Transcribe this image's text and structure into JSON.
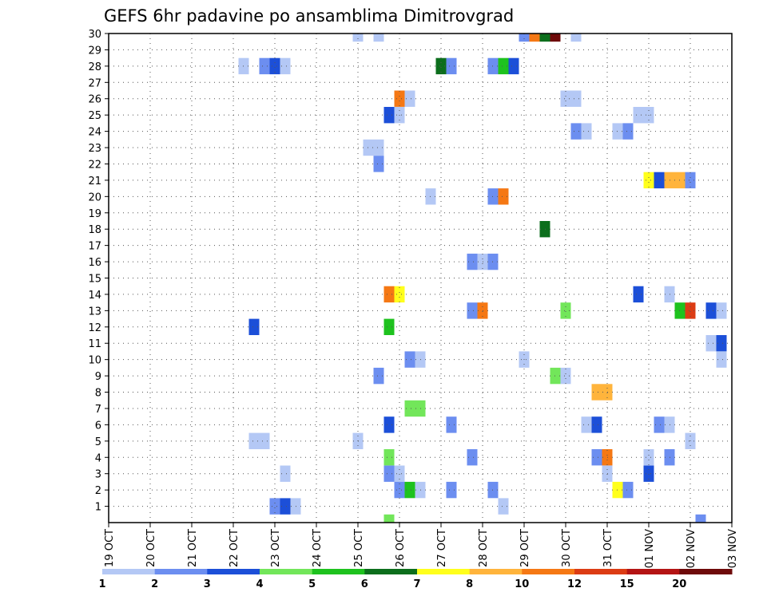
{
  "chart_data": {
    "type": "heatmap",
    "title": "GEFS 6hr padavine po ansamblima Dimitrovgrad",
    "xlabel": "",
    "ylabel": "",
    "x_ticks": [
      "19 OCT",
      "20 OCT",
      "21 OCT",
      "22 OCT",
      "23 OCT",
      "24 OCT",
      "25 OCT",
      "26 OCT",
      "27 OCT",
      "28 OCT",
      "29 OCT",
      "30 OCT",
      "31 OCT",
      "01 NOV",
      "02 NOV",
      "03 NOV"
    ],
    "y_ticks": [
      "1",
      "2",
      "3",
      "4",
      "5",
      "6",
      "7",
      "8",
      "9",
      "10",
      "11",
      "12",
      "13",
      "14",
      "15",
      "16",
      "17",
      "18",
      "19",
      "20",
      "21",
      "22",
      "23",
      "24",
      "25",
      "26",
      "27",
      "28",
      "29",
      "30"
    ],
    "x_range_days": [
      0,
      15
    ],
    "y_range": [
      0,
      30
    ],
    "time_step_hours": 6,
    "grid": true,
    "colorbar": {
      "labels": [
        "1",
        "2",
        "3",
        "4",
        "5",
        "6",
        "7",
        "8",
        "10",
        "12",
        "15",
        "20"
      ],
      "colors": [
        "#b4c8f5",
        "#6c8ef0",
        "#1c4fd8",
        "#72e65a",
        "#1ec21e",
        "#0c6e1c",
        "#ffff1c",
        "#ffb43c",
        "#f57814",
        "#dc3c14",
        "#b41414",
        "#6e0a0a"
      ]
    },
    "cells": [
      {
        "member": 30,
        "day": 25.0,
        "value": 1.5
      },
      {
        "member": 30,
        "day": 25.5,
        "value": 1.5
      },
      {
        "member": 30,
        "day": 29.0,
        "value": 2.5
      },
      {
        "member": 30,
        "day": 29.25,
        "value": 11
      },
      {
        "member": 30,
        "day": 29.5,
        "value": 6.5
      },
      {
        "member": 30,
        "day": 29.75,
        "value": 25
      },
      {
        "member": 30,
        "day": 30.25,
        "value": 1.5
      },
      {
        "member": 28,
        "day": 22.25,
        "value": 1.5
      },
      {
        "member": 28,
        "day": 22.75,
        "value": 2.5
      },
      {
        "member": 28,
        "day": 23.0,
        "value": 3.5
      },
      {
        "member": 28,
        "day": 23.25,
        "value": 1.5
      },
      {
        "member": 28,
        "day": 27.0,
        "value": 6.5
      },
      {
        "member": 28,
        "day": 27.25,
        "value": 2.5
      },
      {
        "member": 28,
        "day": 28.25,
        "value": 2.5
      },
      {
        "member": 28,
        "day": 28.5,
        "value": 5.5
      },
      {
        "member": 28,
        "day": 28.75,
        "value": 3.5
      },
      {
        "member": 26,
        "day": 26.0,
        "value": 11
      },
      {
        "member": 26,
        "day": 26.25,
        "value": 1.5
      },
      {
        "member": 26,
        "day": 30.0,
        "value": 1.5
      },
      {
        "member": 26,
        "day": 30.25,
        "value": 1.5
      },
      {
        "member": 25,
        "day": 25.75,
        "value": 3.5
      },
      {
        "member": 25,
        "day": 26.0,
        "value": 1.5
      },
      {
        "member": 25,
        "day": 31.75,
        "value": 1.5
      },
      {
        "member": 25,
        "day": 32.0,
        "value": 1.5
      },
      {
        "member": 24,
        "day": 30.25,
        "value": 2.5
      },
      {
        "member": 24,
        "day": 30.5,
        "value": 1.5
      },
      {
        "member": 24,
        "day": 31.25,
        "value": 1.5
      },
      {
        "member": 24,
        "day": 31.5,
        "value": 2.5
      },
      {
        "member": 23,
        "day": 25.25,
        "value": 1.5
      },
      {
        "member": 23,
        "day": 25.5,
        "value": 1.5
      },
      {
        "member": 22,
        "day": 25.5,
        "value": 2.5
      },
      {
        "member": 21,
        "day": 32.0,
        "value": 7.5
      },
      {
        "member": 21,
        "day": 32.25,
        "value": 3.5
      },
      {
        "member": 21,
        "day": 32.5,
        "value": 9
      },
      {
        "member": 21,
        "day": 32.75,
        "value": 9
      },
      {
        "member": 21,
        "day": 33.0,
        "value": 2.5
      },
      {
        "member": 20,
        "day": 26.75,
        "value": 1.5
      },
      {
        "member": 20,
        "day": 28.25,
        "value": 2.5
      },
      {
        "member": 20,
        "day": 28.5,
        "value": 11
      },
      {
        "member": 18,
        "day": 29.5,
        "value": 6.5
      },
      {
        "member": 16,
        "day": 27.75,
        "value": 2.5
      },
      {
        "member": 16,
        "day": 28.0,
        "value": 1.5
      },
      {
        "member": 16,
        "day": 28.25,
        "value": 2.5
      },
      {
        "member": 14,
        "day": 25.75,
        "value": 11
      },
      {
        "member": 14,
        "day": 26.0,
        "value": 7.5
      },
      {
        "member": 14,
        "day": 31.75,
        "value": 3.5
      },
      {
        "member": 14,
        "day": 32.5,
        "value": 1.5
      },
      {
        "member": 13,
        "day": 27.75,
        "value": 2.5
      },
      {
        "member": 13,
        "day": 28.0,
        "value": 11
      },
      {
        "member": 13,
        "day": 30.0,
        "value": 4.5
      },
      {
        "member": 13,
        "day": 32.75,
        "value": 5.5
      },
      {
        "member": 13,
        "day": 33.0,
        "value": 13
      },
      {
        "member": 13,
        "day": 33.5,
        "value": 3.5
      },
      {
        "member": 13,
        "day": 33.75,
        "value": 1.5
      },
      {
        "member": 12,
        "day": 22.5,
        "value": 3.5
      },
      {
        "member": 12,
        "day": 25.75,
        "value": 5.5
      },
      {
        "member": 11,
        "day": 33.5,
        "value": 1.5
      },
      {
        "member": 11,
        "day": 33.75,
        "value": 3.5
      },
      {
        "member": 10,
        "day": 26.25,
        "value": 2.5
      },
      {
        "member": 10,
        "day": 26.5,
        "value": 1.5
      },
      {
        "member": 10,
        "day": 29.0,
        "value": 1.5
      },
      {
        "member": 10,
        "day": 33.75,
        "value": 1.5
      },
      {
        "member": 9,
        "day": 25.5,
        "value": 2.5
      },
      {
        "member": 9,
        "day": 29.75,
        "value": 4.5
      },
      {
        "member": 9,
        "day": 30.0,
        "value": 1.5
      },
      {
        "member": 8,
        "day": 30.75,
        "value": 9
      },
      {
        "member": 8,
        "day": 31.0,
        "value": 9
      },
      {
        "member": 7,
        "day": 26.25,
        "value": 4.5
      },
      {
        "member": 7,
        "day": 26.5,
        "value": 4.5
      },
      {
        "member": 6,
        "day": 25.75,
        "value": 3.5
      },
      {
        "member": 6,
        "day": 27.25,
        "value": 2.5
      },
      {
        "member": 6,
        "day": 30.5,
        "value": 1.5
      },
      {
        "member": 6,
        "day": 30.75,
        "value": 3.5
      },
      {
        "member": 6,
        "day": 32.25,
        "value": 2.5
      },
      {
        "member": 6,
        "day": 32.5,
        "value": 1.5
      },
      {
        "member": 5,
        "day": 22.5,
        "value": 1.5
      },
      {
        "member": 5,
        "day": 22.75,
        "value": 1.5
      },
      {
        "member": 5,
        "day": 25.0,
        "value": 1.5
      },
      {
        "member": 5,
        "day": 33.0,
        "value": 1.5
      },
      {
        "member": 4,
        "day": 25.75,
        "value": 4.5
      },
      {
        "member": 4,
        "day": 27.75,
        "value": 2.5
      },
      {
        "member": 4,
        "day": 30.75,
        "value": 2.5
      },
      {
        "member": 4,
        "day": 31.0,
        "value": 11
      },
      {
        "member": 4,
        "day": 32.0,
        "value": 1.5
      },
      {
        "member": 4,
        "day": 32.5,
        "value": 2.5
      },
      {
        "member": 3,
        "day": 23.25,
        "value": 1.5
      },
      {
        "member": 3,
        "day": 25.75,
        "value": 2.5
      },
      {
        "member": 3,
        "day": 26.0,
        "value": 1.5
      },
      {
        "member": 3,
        "day": 31.0,
        "value": 1.5
      },
      {
        "member": 3,
        "day": 32.0,
        "value": 3.5
      },
      {
        "member": 2,
        "day": 26.0,
        "value": 2.5
      },
      {
        "member": 2,
        "day": 26.25,
        "value": 5.5
      },
      {
        "member": 2,
        "day": 26.5,
        "value": 1.5
      },
      {
        "member": 2,
        "day": 27.25,
        "value": 2.5
      },
      {
        "member": 2,
        "day": 28.25,
        "value": 2.5
      },
      {
        "member": 2,
        "day": 31.25,
        "value": 7.5
      },
      {
        "member": 2,
        "day": 31.5,
        "value": 2.5
      },
      {
        "member": 1,
        "day": 23.0,
        "value": 2.5
      },
      {
        "member": 1,
        "day": 23.25,
        "value": 3.5
      },
      {
        "member": 1,
        "day": 23.5,
        "value": 1.5
      },
      {
        "member": 1,
        "day": 28.5,
        "value": 1.5
      },
      {
        "member": 0,
        "day": 25.75,
        "value": 4.5
      },
      {
        "member": 0,
        "day": 33.25,
        "value": 2.5
      }
    ]
  }
}
